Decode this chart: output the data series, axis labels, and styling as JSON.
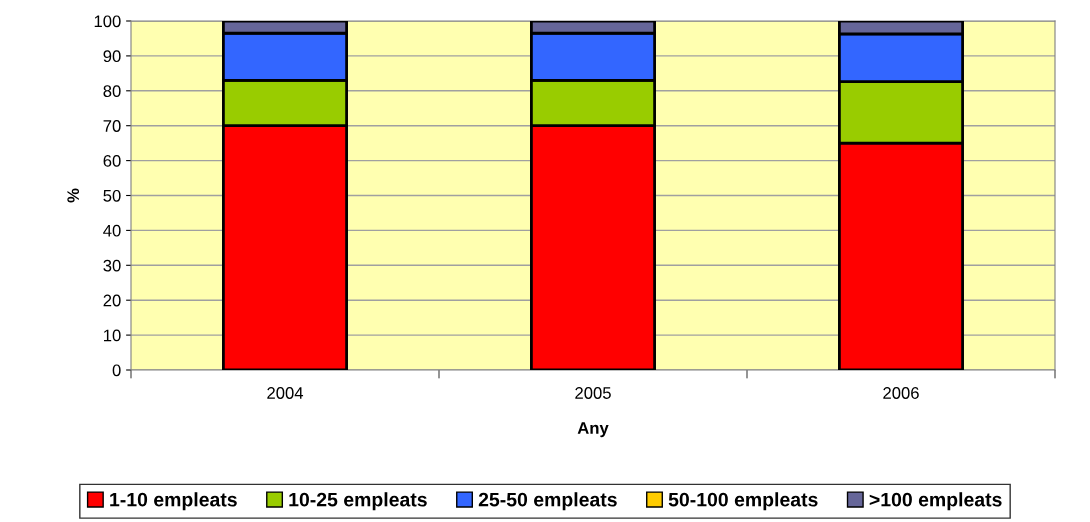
{
  "chart_data": {
    "type": "bar",
    "stacked": true,
    "xlabel": "Any",
    "ylabel": "%",
    "categories": [
      "2004",
      "2005",
      "2006"
    ],
    "series": [
      {
        "name": "1-10 empleats",
        "color": "#ff0000",
        "values": [
          70,
          70,
          65
        ]
      },
      {
        "name": "10-25 empleats",
        "color": "#99cc00",
        "values": [
          13,
          13,
          17.6
        ]
      },
      {
        "name": "25-50 empleats",
        "color": "#3366ff",
        "values": [
          13.5,
          13.5,
          13.7
        ]
      },
      {
        "name": "50-100 empleats",
        "color": "#ffcc00",
        "values": [
          0,
          0,
          0
        ]
      },
      {
        "name": ">100 empleats",
        "color": "#666699",
        "values": [
          3.5,
          3.5,
          3.7
        ]
      }
    ],
    "ylim": [
      0,
      100
    ],
    "yticks": [
      0,
      10,
      20,
      30,
      40,
      50,
      60,
      70,
      80,
      90,
      100
    ],
    "grid": "y",
    "legend": "bottom"
  }
}
